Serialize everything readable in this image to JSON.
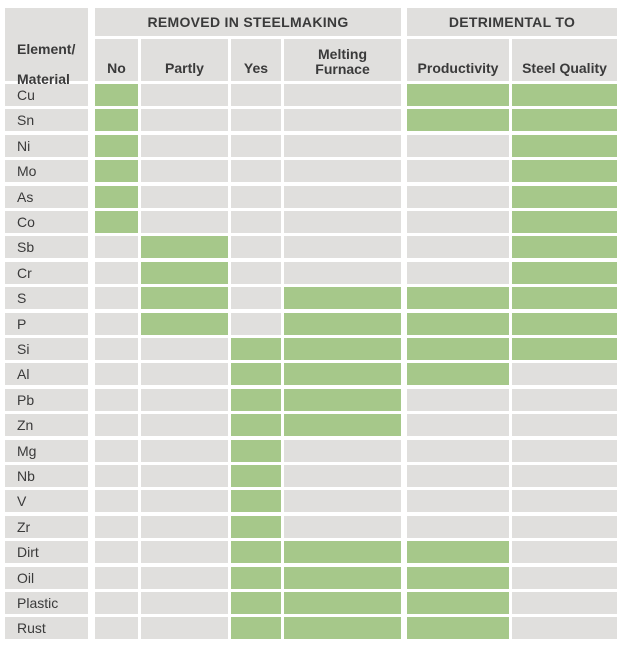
{
  "table": {
    "group_removed": "REMOVED IN STEELMAKING",
    "group_detrimental": "DETRIMENTAL TO",
    "element_header_line1": "Element/",
    "element_header_line2": "Material",
    "columns": {
      "no": "No",
      "partly": "Partly",
      "yes": "Yes",
      "melting_line1": "Melting",
      "melting_line2": "Furnace",
      "productivity": "Productivity",
      "steel_quality": "Steel Quality"
    },
    "highlight_color": "#a6c88a",
    "cell_color": "#e0dfdd",
    "column_order": [
      "no",
      "partly",
      "yes",
      "melting_furnace",
      "productivity",
      "steel_quality"
    ],
    "rows": [
      {
        "element": "Cu",
        "marked": [
          "no",
          "productivity",
          "steel_quality"
        ]
      },
      {
        "element": "Sn",
        "marked": [
          "no",
          "productivity",
          "steel_quality"
        ]
      },
      {
        "element": "Ni",
        "marked": [
          "no",
          "steel_quality"
        ]
      },
      {
        "element": "Mo",
        "marked": [
          "no",
          "steel_quality"
        ]
      },
      {
        "element": "As",
        "marked": [
          "no",
          "steel_quality"
        ]
      },
      {
        "element": "Co",
        "marked": [
          "no",
          "steel_quality"
        ]
      },
      {
        "element": "Sb",
        "marked": [
          "partly",
          "steel_quality"
        ]
      },
      {
        "element": "Cr",
        "marked": [
          "partly",
          "steel_quality"
        ]
      },
      {
        "element": "S",
        "marked": [
          "partly",
          "melting_furnace",
          "productivity",
          "steel_quality"
        ]
      },
      {
        "element": "P",
        "marked": [
          "partly",
          "melting_furnace",
          "productivity",
          "steel_quality"
        ]
      },
      {
        "element": "Si",
        "marked": [
          "yes",
          "melting_furnace",
          "productivity",
          "steel_quality"
        ]
      },
      {
        "element": "Al",
        "marked": [
          "yes",
          "melting_furnace",
          "productivity"
        ]
      },
      {
        "element": "Pb",
        "marked": [
          "yes",
          "melting_furnace"
        ]
      },
      {
        "element": "Zn",
        "marked": [
          "yes",
          "melting_furnace"
        ]
      },
      {
        "element": "Mg",
        "marked": [
          "yes"
        ]
      },
      {
        "element": "Nb",
        "marked": [
          "yes"
        ]
      },
      {
        "element": "V",
        "marked": [
          "yes"
        ]
      },
      {
        "element": "Zr",
        "marked": [
          "yes"
        ]
      },
      {
        "element": "Dirt",
        "marked": [
          "yes",
          "melting_furnace",
          "productivity"
        ]
      },
      {
        "element": "Oil",
        "marked": [
          "yes",
          "melting_furnace",
          "productivity"
        ]
      },
      {
        "element": "Plastic",
        "marked": [
          "yes",
          "melting_furnace",
          "productivity"
        ]
      },
      {
        "element": "Rust",
        "marked": [
          "yes",
          "melting_furnace",
          "productivity"
        ]
      }
    ]
  }
}
